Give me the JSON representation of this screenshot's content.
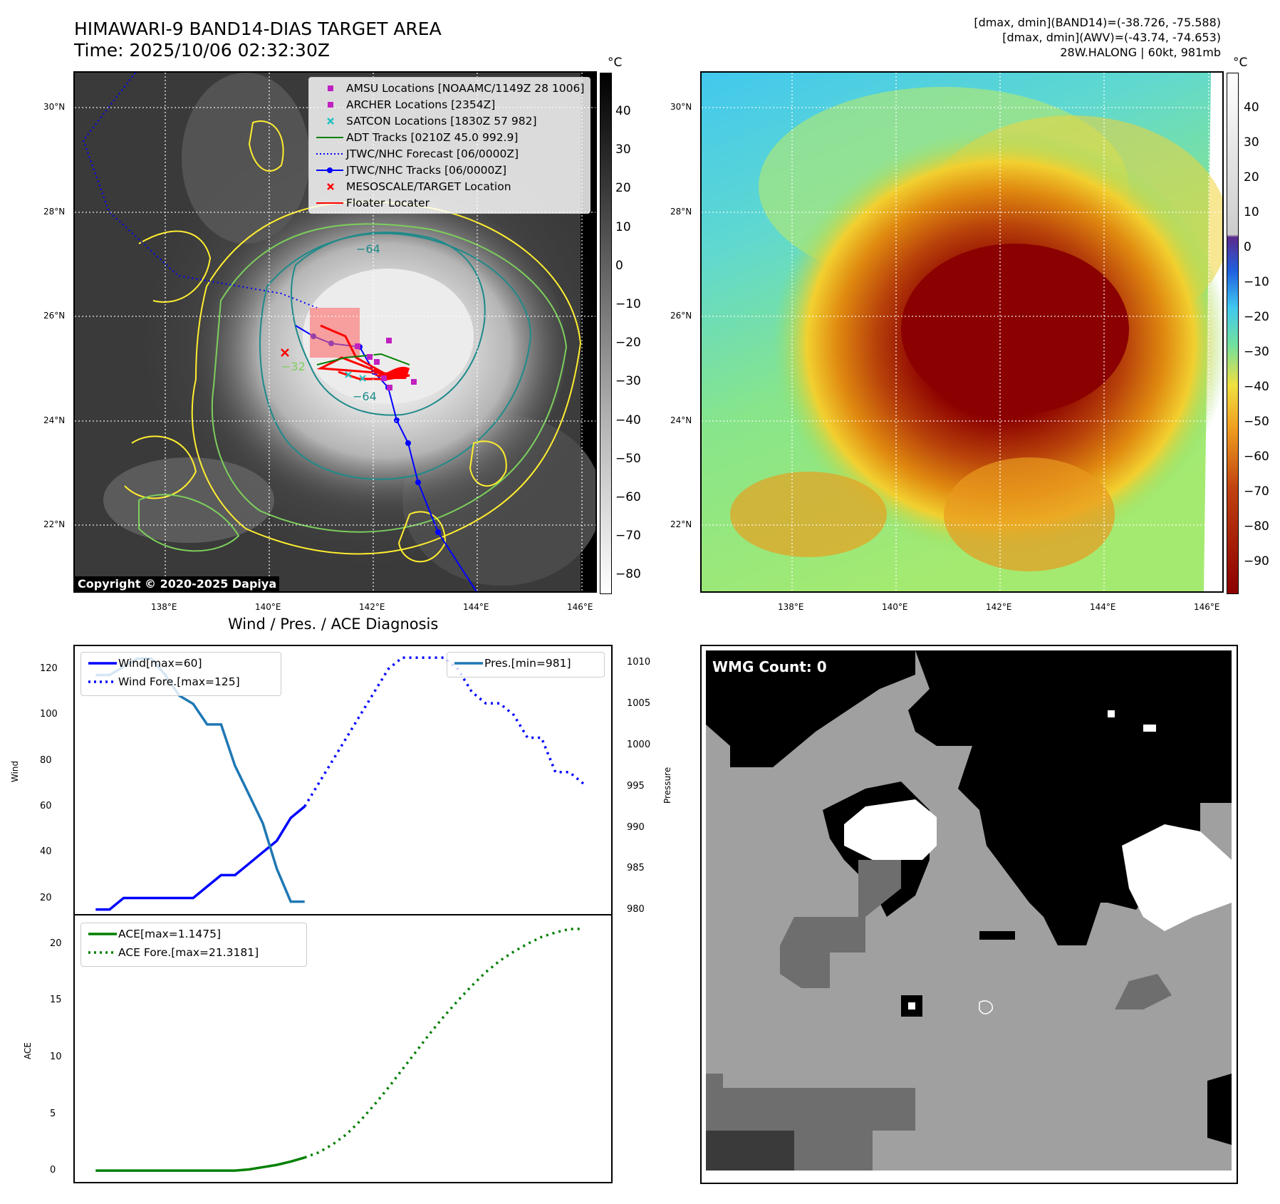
{
  "header": {
    "title": "HIMAWARI-9 BAND14-DIAS TARGET AREA",
    "time": "Time: 2025/10/06 02:32:30Z",
    "stat1": "[dmax, dmin](BAND14)=(-38.726, -75.588)",
    "stat2": "[dmax, dmin](AWV)=(-43.74, -74.653)",
    "storm": "28W.HALONG | 60kt, 981mb"
  },
  "maps": {
    "lat_labels": [
      "30°N",
      "28°N",
      "26°N",
      "24°N",
      "22°N"
    ],
    "lon_labels": [
      "138°E",
      "140°E",
      "142°E",
      "144°E",
      "146°E"
    ],
    "unit": "°C",
    "left_colorbar_ticks": [
      "40",
      "30",
      "20",
      "10",
      "0",
      "−10",
      "−20",
      "−30",
      "−40",
      "−50",
      "−60",
      "−70",
      "−80"
    ],
    "right_colorbar_ticks": [
      "40",
      "30",
      "20",
      "10",
      "0",
      "−10",
      "−20",
      "−30",
      "−40",
      "−50",
      "−60",
      "−70",
      "−80",
      "−90"
    ],
    "contour_labels": [
      "−64",
      "−32",
      "−64"
    ],
    "copyright": "Copyright © 2020-2025 Dapiya",
    "legend": [
      {
        "label": "AMSU Locations [NOAAMC/1149Z 28 1006]",
        "symbol": "square",
        "color": "#c020c0"
      },
      {
        "label": "ARCHER Locations [2354Z]",
        "symbol": "square",
        "color": "#c020c0"
      },
      {
        "label": "SATCON Locations [1830Z 57 982]",
        "symbol": "x",
        "color": "#20c0c0"
      },
      {
        "label": "ADT Tracks [0210Z 45.0 992.9]",
        "symbol": "line",
        "color": "#008000"
      },
      {
        "label": "JTWC/NHC Forecast [06/0000Z]",
        "symbol": "dotted",
        "color": "#0000ff"
      },
      {
        "label": "JTWC/NHC Tracks [06/0000Z]",
        "symbol": "linedot",
        "color": "#0000ff"
      },
      {
        "label": "MESOSCALE/TARGET Location",
        "symbol": "x",
        "color": "#ff0000"
      },
      {
        "label": "Floater Locater",
        "symbol": "line",
        "color": "#ff0000"
      }
    ],
    "colors": {
      "jtwc": "#0000ff",
      "floater": "#ff0000",
      "contour_yellow": "#ffee30",
      "contour_green": "#7ccf5c",
      "contour_teal": "#1e8a8a"
    }
  },
  "diagnosis": {
    "title": "Wind / Pres. / ACE Diagnosis",
    "wind_label": "Wind",
    "pressure_label": "Pressure",
    "ace_label": "ACE",
    "wind_ticks": [
      "120",
      "100",
      "80",
      "60",
      "40",
      "20"
    ],
    "pressure_ticks": [
      "1010",
      "1005",
      "1000",
      "995",
      "990",
      "985",
      "980"
    ],
    "ace_ticks": [
      "20",
      "15",
      "10",
      "5",
      "0"
    ],
    "legend_wind": "Wind[max=60]",
    "legend_wind_fore": "Wind Fore.[max=125]",
    "legend_pres": "Pres.[min=981]",
    "legend_ace": "ACE[max=1.1475]",
    "legend_ace_fore": "ACE Fore.[max=21.3181]"
  },
  "wmg": {
    "label": "WMG Count: 0"
  },
  "chart_data": [
    {
      "type": "line",
      "title": "Wind / Pres. / ACE Diagnosis",
      "ylabel": "Wind",
      "ylim": [
        13,
        130
      ],
      "y2label": "Pressure",
      "y2lim": [
        979.5,
        1012
      ],
      "series": [
        {
          "name": "Wind[max=60]",
          "color": "#0000ff",
          "style": "solid",
          "x": [
            0,
            1,
            2,
            3,
            4,
            5,
            6,
            7,
            8,
            9,
            10,
            11,
            12,
            13,
            14,
            15
          ],
          "values": [
            15,
            15,
            20,
            20,
            20,
            20,
            20,
            20,
            25,
            30,
            30,
            35,
            40,
            45,
            55,
            60
          ]
        },
        {
          "name": "Wind Fore.[max=125]",
          "color": "#0000ff",
          "style": "dotted",
          "x": [
            15,
            16,
            17,
            18,
            19,
            20,
            21,
            22,
            23,
            24,
            25,
            26,
            27,
            28,
            29,
            30,
            31,
            32,
            33,
            34,
            35
          ],
          "values": [
            60,
            70,
            80,
            90,
            100,
            110,
            120,
            125,
            125,
            125,
            125,
            120,
            110,
            105,
            105,
            100,
            90,
            90,
            75,
            75,
            70
          ]
        },
        {
          "name": "Pres.[min=981]",
          "color": "#1f77b4",
          "style": "solid",
          "axis": "right",
          "x": [
            0,
            1,
            2,
            3,
            4,
            5,
            6,
            7,
            8,
            9,
            10,
            11,
            12,
            13,
            14,
            15
          ],
          "values": [
            1008.5,
            1008.5,
            1009.5,
            1010.5,
            1010.5,
            1008.5,
            1006,
            1005,
            1002.5,
            1002.5,
            997.5,
            994,
            990.5,
            985,
            981,
            981
          ]
        }
      ]
    },
    {
      "type": "line",
      "ylabel": "ACE",
      "ylim": [
        -1,
        22.5
      ],
      "series": [
        {
          "name": "ACE[max=1.1475]",
          "color": "#008000",
          "style": "solid",
          "x": [
            0,
            2,
            4,
            6,
            8,
            10,
            11,
            12,
            13,
            14,
            15
          ],
          "values": [
            0,
            0,
            0,
            0,
            0,
            0,
            0.1,
            0.3,
            0.5,
            0.8,
            1.1475
          ]
        },
        {
          "name": "ACE Fore.[max=21.3181]",
          "color": "#008000",
          "style": "dotted",
          "x": [
            15,
            16,
            17,
            18,
            19,
            20,
            21,
            22,
            23,
            24,
            25,
            26,
            27,
            28,
            29,
            30,
            31,
            32,
            33,
            34,
            35
          ],
          "values": [
            1.15,
            1.6,
            2.3,
            3.2,
            4.4,
            5.8,
            7.3,
            8.9,
            10.5,
            12.1,
            13.6,
            15,
            16.3,
            17.5,
            18.5,
            19.3,
            20,
            20.6,
            21,
            21.3,
            21.3181
          ]
        }
      ]
    }
  ]
}
